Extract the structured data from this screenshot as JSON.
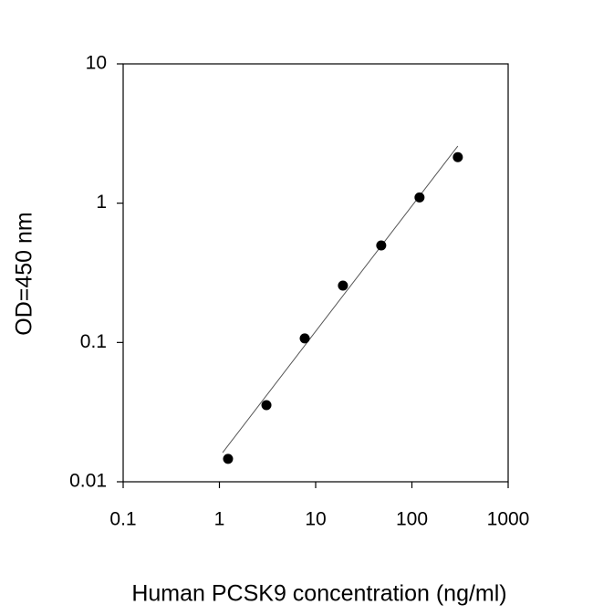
{
  "chart_data": {
    "type": "scatter",
    "x_label": "Human PCSK9 concentration (ng/ml)",
    "y_label": "OD=450 nm",
    "x": [
      1.23,
      3.08,
      7.7,
      19.2,
      48,
      120,
      300
    ],
    "values": [
      0.0146,
      0.0355,
      0.107,
      0.256,
      0.497,
      1.1,
      2.14
    ],
    "color": "#000000",
    "fit": {
      "x": [
        1.08,
        300
      ],
      "values": [
        0.0162,
        2.57
      ],
      "color": "#555555"
    },
    "xscale": "log",
    "yscale": "log",
    "xlim": [
      0.1,
      1000
    ],
    "ylim": [
      0.01,
      10
    ],
    "xticks": [
      0.1,
      1,
      10,
      100,
      1000
    ],
    "yticks": [
      0.01,
      0.1,
      1,
      10
    ],
    "grid": false
  }
}
